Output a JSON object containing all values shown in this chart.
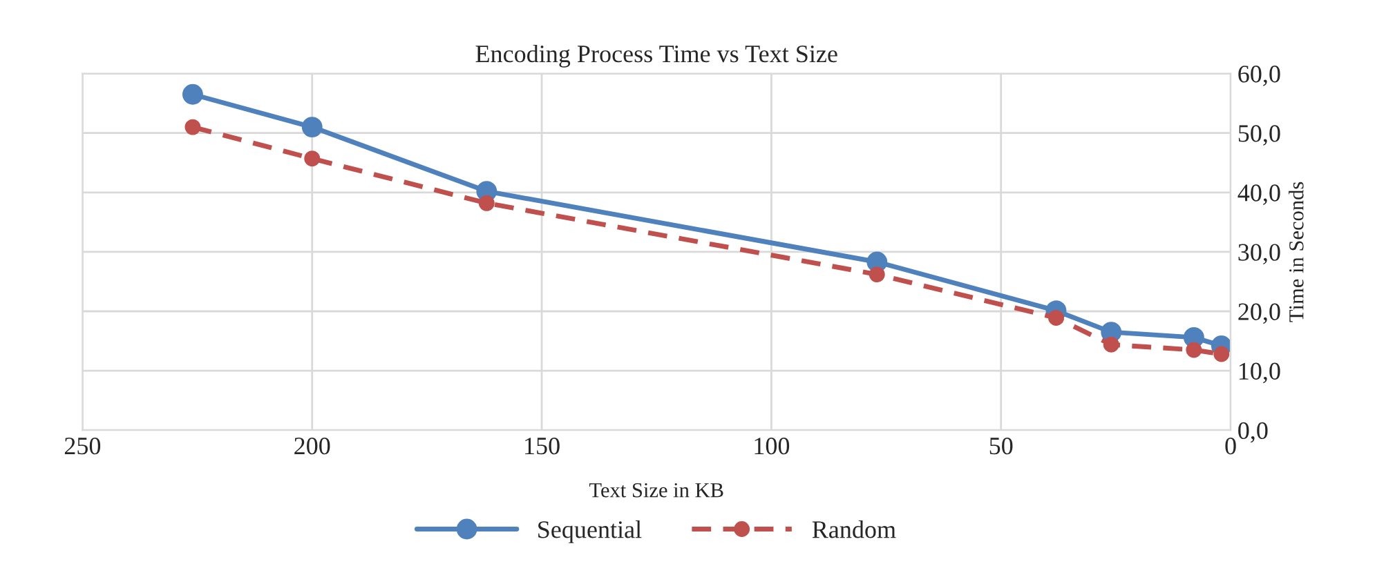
{
  "chart_data": {
    "type": "line",
    "title": "Encoding Process Time vs Text Size",
    "xlabel": "Text Size in KB",
    "ylabel": "Time in Seconds",
    "x": [
      226,
      200,
      162,
      77,
      38,
      26,
      8,
      2
    ],
    "series": [
      {
        "name": "Sequential",
        "color": "#4f81bd",
        "line_style": "solid",
        "values": [
          56.5,
          51.0,
          40.2,
          28.3,
          20.1,
          16.5,
          15.6,
          14.2
        ]
      },
      {
        "name": "Random",
        "color": "#c0504d",
        "line_style": "dashed",
        "values": [
          51.0,
          45.7,
          38.2,
          26.2,
          18.9,
          14.4,
          13.5,
          12.8
        ]
      }
    ],
    "xlim": [
      250,
      0
    ],
    "xticks": [
      250,
      200,
      150,
      100,
      50,
      0
    ],
    "ylim": [
      0,
      60
    ],
    "yticks": [
      {
        "value": 0,
        "label": "0,0"
      },
      {
        "value": 10,
        "label": "10,0"
      },
      {
        "value": 20,
        "label": "20,0"
      },
      {
        "value": 30,
        "label": "30,0"
      },
      {
        "value": 40,
        "label": "40,0"
      },
      {
        "value": 50,
        "label": "50,0"
      },
      {
        "value": 60,
        "label": "60,0"
      }
    ],
    "grid": true,
    "legend": "bottom",
    "marker": "circle"
  }
}
